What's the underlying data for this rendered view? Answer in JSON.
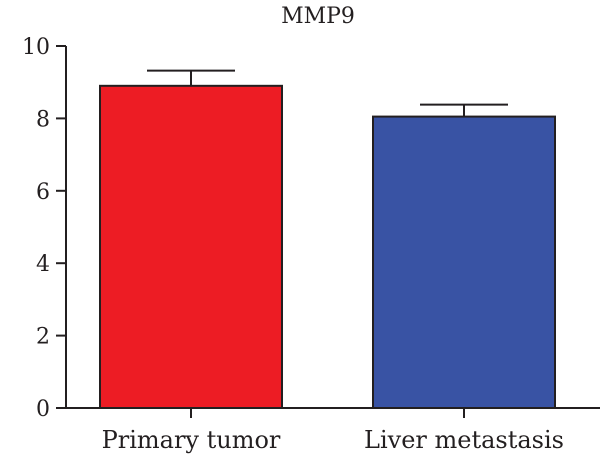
{
  "chart_data": {
    "type": "bar",
    "title": "MMP9",
    "xlabel": "",
    "ylabel": "",
    "ylim": [
      0,
      10
    ],
    "yticks": [
      "0",
      "2",
      "4",
      "6",
      "8",
      "10"
    ],
    "categories": [
      "Primary tumor",
      "Liver metastasis"
    ],
    "values": [
      8.9,
      8.05
    ],
    "error": [
      0.42,
      0.33
    ],
    "colors": [
      "#ed1c24",
      "#3953a4"
    ],
    "grid": false
  }
}
